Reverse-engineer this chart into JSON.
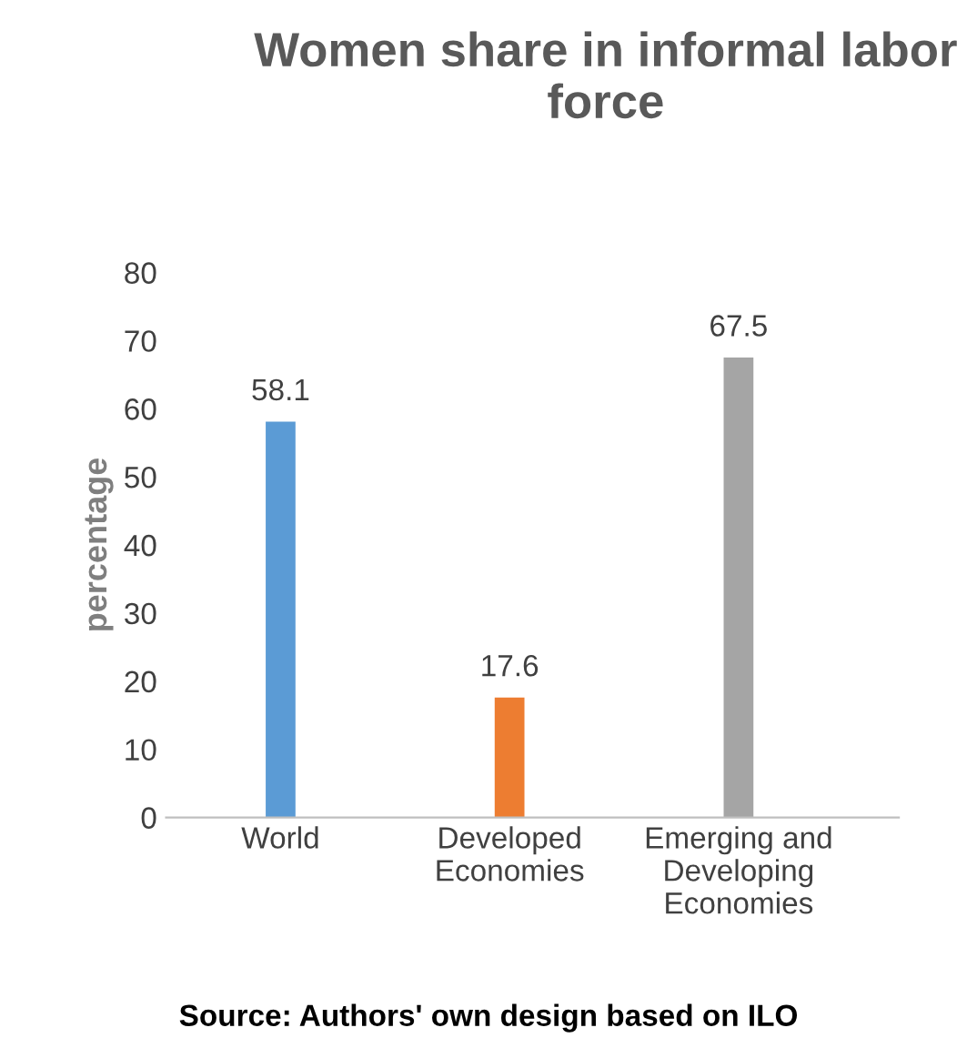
{
  "chart_data": {
    "type": "bar",
    "title": "Women share in informal labor force",
    "ylabel": "percentage",
    "categories": [
      "World",
      "Developed\nEconomies",
      "Emerging and\nDeveloping\nEconomies"
    ],
    "values": [
      58.1,
      17.6,
      67.5
    ],
    "colors": [
      "#5b9bd5",
      "#ed7d31",
      "#a5a5a5"
    ],
    "ylim": [
      0,
      80
    ],
    "yticks": [
      0,
      10,
      20,
      30,
      40,
      50,
      60,
      70,
      80
    ],
    "data_labels": true,
    "grid": false,
    "legend": false,
    "annotations": [
      "Source: Authors' own design based on ILO"
    ]
  }
}
